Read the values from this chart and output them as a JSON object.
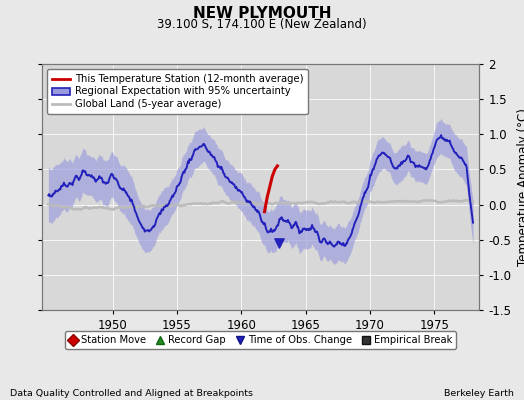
{
  "title": "NEW PLYMOUTH",
  "subtitle": "39.100 S, 174.100 E (New Zealand)",
  "ylabel": "Temperature Anomaly (°C)",
  "footer_left": "Data Quality Controlled and Aligned at Breakpoints",
  "footer_right": "Berkeley Earth",
  "xlim": [
    1944.5,
    1978.5
  ],
  "ylim": [
    -1.5,
    2.0
  ],
  "yticks": [
    -1.5,
    -1.0,
    -0.5,
    0.0,
    0.5,
    1.0,
    1.5,
    2.0
  ],
  "xticks": [
    1950,
    1955,
    1960,
    1965,
    1970,
    1975
  ],
  "bg_color": "#e8e8e8",
  "plot_bg_color": "#d8d8d8",
  "regional_color": "#2222bb",
  "regional_fill_color": "#9999dd",
  "station_color": "#cc0000",
  "global_color": "#bbbbbb",
  "legend1_items": [
    {
      "label": "This Temperature Station (12-month average)"
    },
    {
      "label": "Regional Expectation with 95% uncertainty"
    },
    {
      "label": "Global Land (5-year average)"
    }
  ],
  "legend2_items": [
    {
      "label": "Station Move"
    },
    {
      "label": "Record Gap"
    },
    {
      "label": "Time of Obs. Change"
    },
    {
      "label": "Empirical Break"
    }
  ],
  "regional_key_x": [
    1945,
    1946,
    1947,
    1947.8,
    1948.5,
    1949.5,
    1950.0,
    1950.8,
    1951.5,
    1952.0,
    1952.8,
    1953.5,
    1954.2,
    1954.8,
    1955.5,
    1956.0,
    1956.5,
    1957.0,
    1957.5,
    1958.0,
    1958.5,
    1959.0,
    1959.5,
    1960.0,
    1960.5,
    1961.0,
    1961.5,
    1962.0,
    1962.5,
    1963.0,
    1963.5,
    1964.0,
    1964.5,
    1965.0,
    1965.5,
    1966.0,
    1966.5,
    1967.0,
    1967.5,
    1968.0,
    1968.5,
    1969.0,
    1969.5,
    1970.0,
    1970.5,
    1971.0,
    1971.5,
    1972.0,
    1972.5,
    1973.0,
    1973.5,
    1974.0,
    1974.5,
    1975.0,
    1975.5,
    1976.0,
    1976.5,
    1977.0,
    1977.5,
    1978.0
  ],
  "regional_key_y": [
    0.1,
    0.25,
    0.35,
    0.45,
    0.4,
    0.3,
    0.4,
    0.2,
    0.05,
    -0.25,
    -0.35,
    -0.2,
    0.0,
    0.15,
    0.45,
    0.65,
    0.8,
    0.85,
    0.75,
    0.6,
    0.5,
    0.35,
    0.25,
    0.15,
    0.1,
    -0.05,
    -0.2,
    -0.35,
    -0.4,
    -0.2,
    -0.2,
    -0.3,
    -0.35,
    -0.35,
    -0.3,
    -0.45,
    -0.5,
    -0.6,
    -0.55,
    -0.55,
    -0.4,
    -0.2,
    0.1,
    0.4,
    0.65,
    0.75,
    0.65,
    0.5,
    0.6,
    0.7,
    0.6,
    0.5,
    0.55,
    0.85,
    1.0,
    0.9,
    0.75,
    0.65,
    0.5,
    -0.3
  ],
  "uncertainty_key_x": [
    1945,
    1948,
    1951,
    1954,
    1957,
    1960,
    1963,
    1966,
    1969,
    1972,
    1975,
    1978
  ],
  "uncertainty_key_y": [
    0.35,
    0.25,
    0.3,
    0.22,
    0.2,
    0.22,
    0.28,
    0.22,
    0.2,
    0.18,
    0.18,
    0.25
  ],
  "station_key_x": [
    1961.8,
    1962.0,
    1962.2,
    1962.4,
    1962.6,
    1962.8
  ],
  "station_key_y": [
    -0.1,
    0.1,
    0.25,
    0.4,
    0.5,
    0.55
  ],
  "global_key_x": [
    1945,
    1947,
    1950,
    1953,
    1956,
    1959,
    1962,
    1965,
    1968,
    1971,
    1974,
    1977,
    1978
  ],
  "global_key_y": [
    0.0,
    -0.05,
    -0.05,
    -0.02,
    0.0,
    0.02,
    0.02,
    0.03,
    0.03,
    0.04,
    0.05,
    0.05,
    0.04
  ],
  "time_obs_x": 1962.9,
  "time_obs_y": -0.55
}
